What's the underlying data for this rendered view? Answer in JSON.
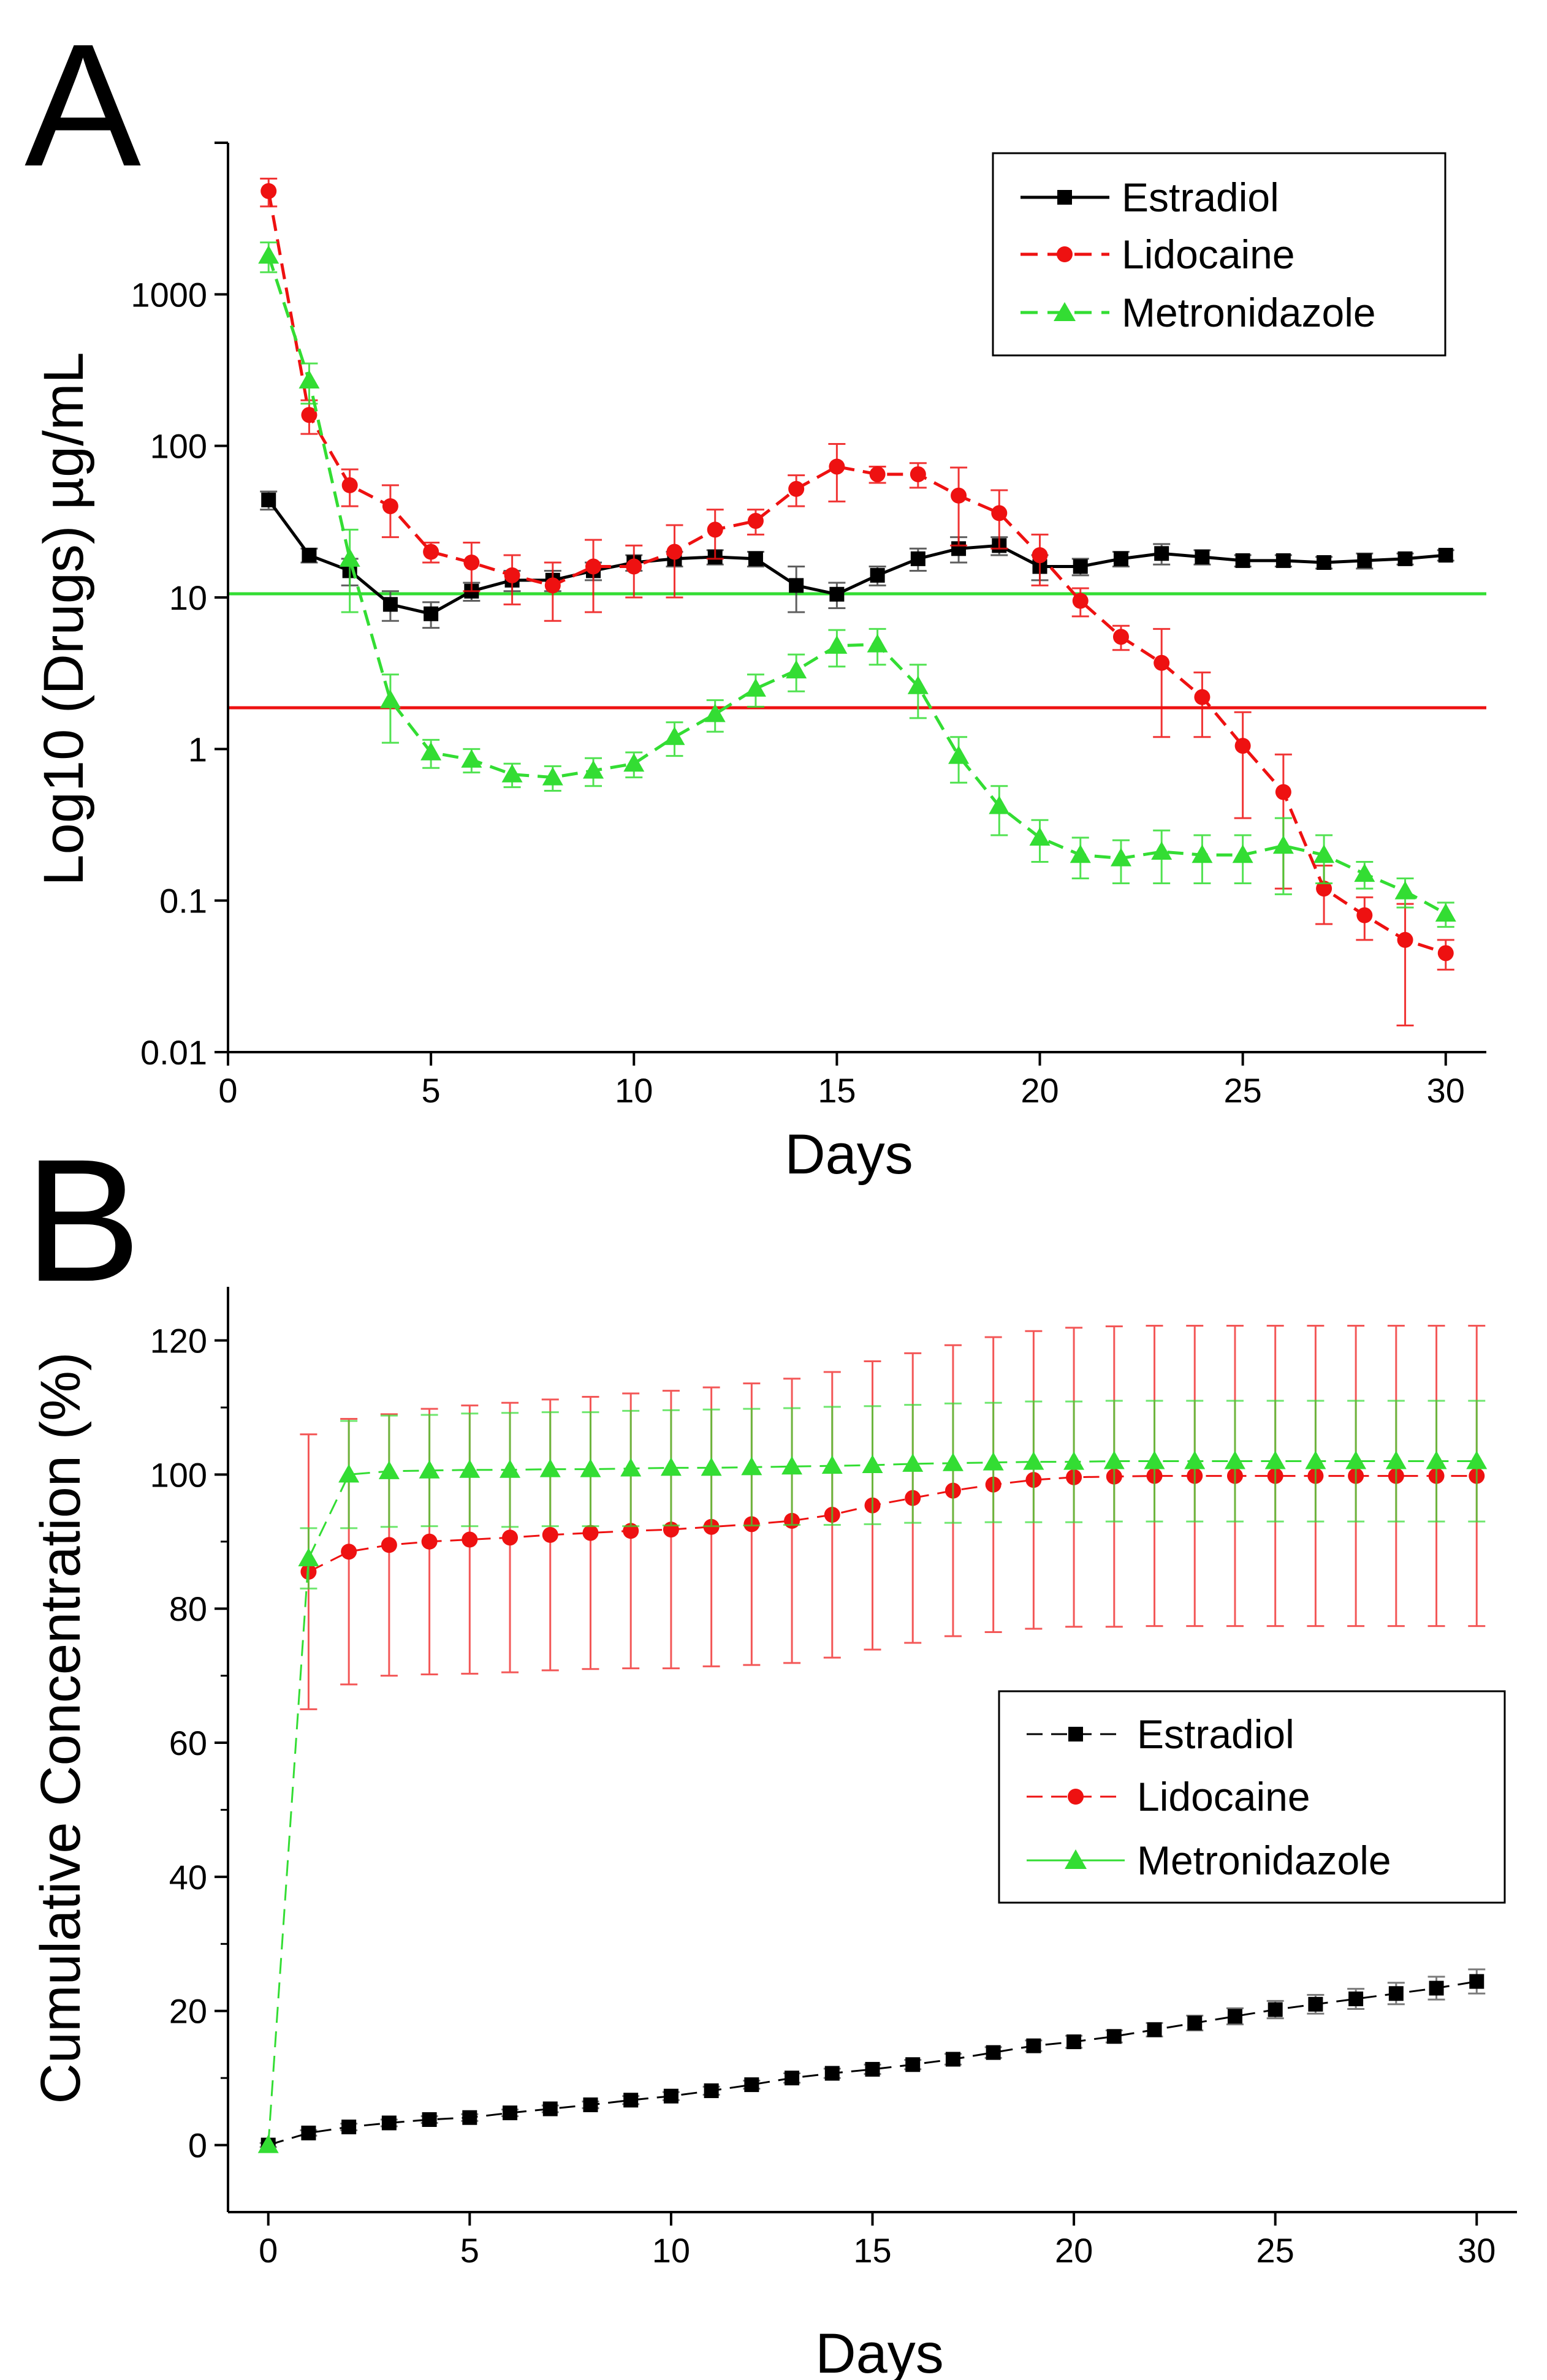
{
  "chart_data": [
    {
      "panel_label": "A",
      "type": "line",
      "scale": "log",
      "xlabel": "Days",
      "ylabel": "Log10 (Drugs)   µg/mL",
      "xlim": [
        0,
        31
      ],
      "ylim": [
        0.01,
        10000
      ],
      "xticks": [
        0,
        5,
        10,
        15,
        20,
        25,
        30
      ],
      "yticks": [
        0.01,
        0.1,
        1,
        10,
        100,
        1000
      ],
      "ytick_labels": [
        "0.01",
        "0.1",
        "1",
        "10",
        "100",
        "1000"
      ],
      "legend_position": "top-right",
      "reference_lines": [
        {
          "y": 8,
          "color": "#33dd33"
        },
        {
          "y": 1.5,
          "color": "#ee1111"
        }
      ],
      "series": [
        {
          "name": "Estradiol",
          "color": "#000000",
          "marker": "square",
          "x": [
            1,
            2,
            3,
            4,
            5,
            6,
            7,
            8,
            9,
            10,
            11,
            12,
            13,
            14,
            15,
            16,
            17,
            18,
            19,
            20,
            21,
            22,
            23,
            24,
            25,
            26,
            27,
            28,
            29,
            30
          ],
          "values": [
            44,
            19,
            15,
            9,
            7.8,
            11,
            13,
            13,
            15,
            17,
            18,
            18.5,
            18,
            12,
            10.5,
            14,
            18,
            21,
            22,
            16,
            16,
            18,
            19.5,
            18.5,
            17.5,
            17.5,
            17,
            17.5,
            18,
            19
          ],
          "errors": [
            6,
            2,
            3,
            2,
            1.5,
            1.5,
            2,
            2,
            2,
            2,
            2,
            2,
            2,
            4,
            2,
            2,
            3,
            4,
            3,
            3,
            2,
            2,
            3,
            2,
            1.5,
            1.5,
            1.5,
            2,
            1.5,
            1.5
          ]
        },
        {
          "name": "Lidocaine",
          "color": "#ee1111",
          "marker": "circle",
          "x": [
            1,
            2,
            3,
            4,
            5,
            6,
            7,
            8,
            9,
            10,
            11,
            12,
            13,
            14,
            15,
            16,
            17,
            18,
            19,
            20,
            21,
            22,
            23,
            24,
            25,
            26,
            27,
            28,
            29,
            30
          ],
          "values": [
            4800,
            160,
            55,
            40,
            20,
            17,
            14,
            12,
            16,
            16,
            20,
            28,
            32,
            52,
            73,
            65,
            65,
            47,
            36,
            19,
            9.5,
            5.5,
            3.7,
            2.2,
            1.05,
            0.52,
            0.12,
            0.08,
            0.055,
            0.045
          ],
          "errors": [
            1000,
            40,
            15,
            15,
            3,
            6,
            5,
            5,
            8,
            6,
            10,
            10,
            6,
            12,
            30,
            8,
            12,
            25,
            15,
            7,
            2,
            1,
            2.5,
            1,
            0.7,
            0.4,
            0.05,
            0.025,
            0.04,
            0.01
          ]
        },
        {
          "name": "Metronidazole",
          "color": "#33dd33",
          "marker": "triangle",
          "x": [
            1,
            2,
            3,
            4,
            5,
            6,
            7,
            8,
            9,
            10,
            11,
            12,
            13,
            14,
            15,
            16,
            17,
            18,
            19,
            20,
            21,
            22,
            23,
            24,
            25,
            26,
            27,
            28,
            29,
            30
          ],
          "values": [
            1800,
            270,
            18,
            2.1,
            0.95,
            0.85,
            0.68,
            0.65,
            0.72,
            0.8,
            1.2,
            1.7,
            2.5,
            3.3,
            4.8,
            4.9,
            2.6,
            0.9,
            0.42,
            0.26,
            0.2,
            0.19,
            0.21,
            0.2,
            0.2,
            0.23,
            0.2,
            0.15,
            0.115,
            0.082
          ],
          "errors": [
            400,
            80,
            10,
            1,
            0.2,
            0.15,
            0.12,
            0.12,
            0.15,
            0.15,
            0.3,
            0.4,
            0.6,
            0.9,
            1.3,
            1.3,
            1,
            0.3,
            0.15,
            0.08,
            0.06,
            0.06,
            0.08,
            0.07,
            0.07,
            0.12,
            0.07,
            0.03,
            0.025,
            0.015
          ]
        }
      ]
    },
    {
      "panel_label": "B",
      "type": "line",
      "scale": "linear",
      "xlabel": "Days",
      "ylabel": "Cumulative Concentration (%)",
      "xlim": [
        -1,
        31
      ],
      "ylim": [
        -10,
        128
      ],
      "xticks": [
        0,
        5,
        10,
        15,
        20,
        25,
        30
      ],
      "yticks": [
        0,
        20,
        40,
        60,
        80,
        100,
        120
      ],
      "ytick_labels": [
        "0",
        "20",
        "40",
        "60",
        "80",
        "100",
        "120"
      ],
      "legend_position": "center-right",
      "series": [
        {
          "name": "Estradiol",
          "color": "#000000",
          "marker": "square",
          "x": [
            0,
            1,
            2,
            3,
            4,
            5,
            6,
            7,
            8,
            9,
            10,
            11,
            12,
            13,
            14,
            15,
            16,
            17,
            18,
            19,
            20,
            21,
            22,
            23,
            24,
            25,
            26,
            27,
            28,
            29,
            30
          ],
          "values": [
            0,
            1.8,
            2.7,
            3.3,
            3.8,
            4.1,
            4.8,
            5.4,
            6,
            6.7,
            7.3,
            8.1,
            9,
            10,
            10.7,
            11.3,
            12,
            12.8,
            13.8,
            14.8,
            15.4,
            16.2,
            17.2,
            18.2,
            19.2,
            20.2,
            21,
            21.8,
            22.6,
            23.4,
            24.4
          ],
          "errors": [
            0.3,
            0.4,
            0.5,
            0.5,
            0.5,
            0.5,
            0.5,
            0.5,
            0.5,
            0.6,
            0.6,
            0.6,
            0.6,
            0.7,
            0.7,
            0.7,
            0.7,
            0.8,
            0.8,
            0.8,
            0.9,
            0.9,
            1,
            1.1,
            1.2,
            1.3,
            1.4,
            1.5,
            1.6,
            1.7,
            1.8
          ]
        },
        {
          "name": "Lidocaine",
          "color": "#ee1111",
          "marker": "circle",
          "x": [
            1,
            2,
            3,
            4,
            5,
            6,
            7,
            8,
            9,
            10,
            11,
            12,
            13,
            14,
            15,
            16,
            17,
            18,
            19,
            20,
            21,
            22,
            23,
            24,
            25,
            26,
            27,
            28,
            29,
            30
          ],
          "values": [
            85.5,
            88.5,
            89.5,
            90,
            90.3,
            90.6,
            91,
            91.3,
            91.6,
            91.8,
            92.2,
            92.6,
            93.1,
            94,
            95.4,
            96.5,
            97.6,
            98.5,
            99.2,
            99.6,
            99.7,
            99.8,
            99.8,
            99.8,
            99.8,
            99.8,
            99.8,
            99.8,
            99.8,
            99.8
          ],
          "errors": [
            20.5,
            19.8,
            19.5,
            19.8,
            20,
            20.1,
            20.2,
            20.3,
            20.5,
            20.7,
            20.8,
            21,
            21.2,
            21.3,
            21.5,
            21.6,
            21.7,
            22,
            22.2,
            22.3,
            22.4,
            22.4,
            22.4,
            22.4,
            22.4,
            22.4,
            22.4,
            22.4,
            22.4,
            22.4
          ]
        },
        {
          "name": "Metronidazole",
          "color": "#33dd33",
          "marker": "triangle",
          "x": [
            0,
            1,
            2,
            3,
            4,
            5,
            6,
            7,
            8,
            9,
            10,
            11,
            12,
            13,
            14,
            15,
            16,
            17,
            18,
            19,
            20,
            21,
            22,
            23,
            24,
            25,
            26,
            27,
            28,
            29,
            30
          ],
          "values": [
            0,
            87.5,
            100,
            100.5,
            100.6,
            100.7,
            100.7,
            100.8,
            100.8,
            100.9,
            101,
            101,
            101.1,
            101.2,
            101.3,
            101.4,
            101.6,
            101.7,
            101.8,
            101.9,
            101.9,
            102,
            102,
            102,
            102,
            102,
            102,
            102,
            102,
            102,
            102
          ],
          "errors": [
            0,
            4.5,
            8,
            8.3,
            8.3,
            8.4,
            8.5,
            8.5,
            8.5,
            8.6,
            8.6,
            8.7,
            8.7,
            8.7,
            8.8,
            8.8,
            8.8,
            8.9,
            8.9,
            9,
            9,
            9,
            9,
            9,
            9,
            9,
            9,
            9,
            9,
            9,
            9
          ]
        }
      ]
    }
  ]
}
